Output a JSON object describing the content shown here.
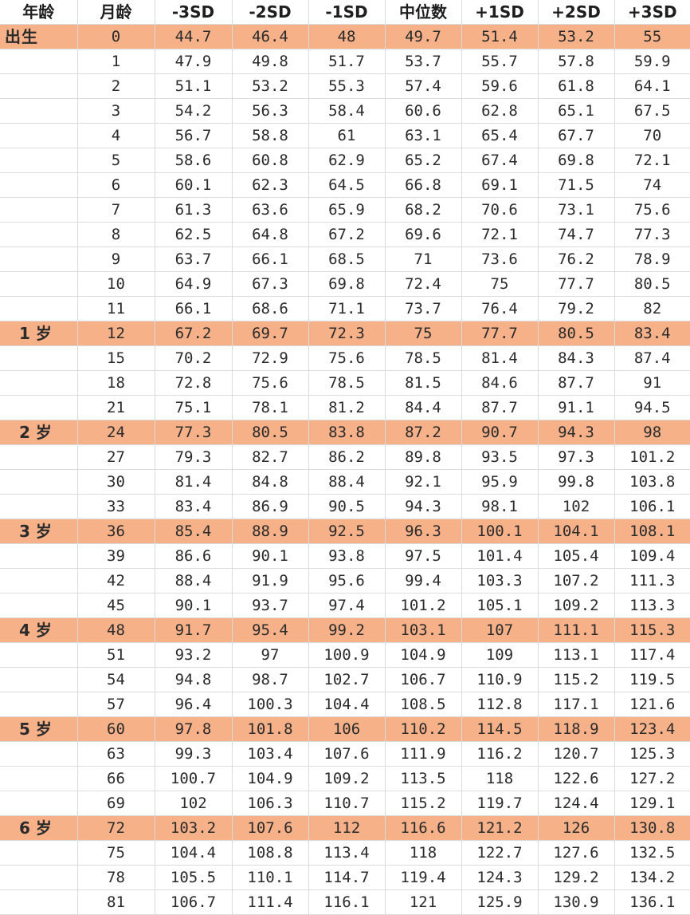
{
  "table": {
    "headers": [
      "年龄",
      "月龄",
      "-3SD",
      "-2SD",
      "-1SD",
      "中位数",
      "+1SD",
      "+2SD",
      "+3SD"
    ],
    "highlight_color": "#f6b189",
    "rows": [
      {
        "age": "出生",
        "month": "0",
        "values": [
          "44.7",
          "46.4",
          "48",
          "49.7",
          "51.4",
          "53.2",
          "55"
        ]
      },
      {
        "age": "",
        "month": "1",
        "values": [
          "47.9",
          "49.8",
          "51.7",
          "53.7",
          "55.7",
          "57.8",
          "59.9"
        ]
      },
      {
        "age": "",
        "month": "2",
        "values": [
          "51.1",
          "53.2",
          "55.3",
          "57.4",
          "59.6",
          "61.8",
          "64.1"
        ]
      },
      {
        "age": "",
        "month": "3",
        "values": [
          "54.2",
          "56.3",
          "58.4",
          "60.6",
          "62.8",
          "65.1",
          "67.5"
        ]
      },
      {
        "age": "",
        "month": "4",
        "values": [
          "56.7",
          "58.8",
          "61",
          "63.1",
          "65.4",
          "67.7",
          "70"
        ]
      },
      {
        "age": "",
        "month": "5",
        "values": [
          "58.6",
          "60.8",
          "62.9",
          "65.2",
          "67.4",
          "69.8",
          "72.1"
        ]
      },
      {
        "age": "",
        "month": "6",
        "values": [
          "60.1",
          "62.3",
          "64.5",
          "66.8",
          "69.1",
          "71.5",
          "74"
        ]
      },
      {
        "age": "",
        "month": "7",
        "values": [
          "61.3",
          "63.6",
          "65.9",
          "68.2",
          "70.6",
          "73.1",
          "75.6"
        ]
      },
      {
        "age": "",
        "month": "8",
        "values": [
          "62.5",
          "64.8",
          "67.2",
          "69.6",
          "72.1",
          "74.7",
          "77.3"
        ]
      },
      {
        "age": "",
        "month": "9",
        "values": [
          "63.7",
          "66.1",
          "68.5",
          "71",
          "73.6",
          "76.2",
          "78.9"
        ]
      },
      {
        "age": "",
        "month": "10",
        "values": [
          "64.9",
          "67.3",
          "69.8",
          "72.4",
          "75",
          "77.7",
          "80.5"
        ]
      },
      {
        "age": "",
        "month": "11",
        "values": [
          "66.1",
          "68.6",
          "71.1",
          "73.7",
          "76.4",
          "79.2",
          "82"
        ]
      },
      {
        "age": "1 岁",
        "month": "12",
        "values": [
          "67.2",
          "69.7",
          "72.3",
          "75",
          "77.7",
          "80.5",
          "83.4"
        ]
      },
      {
        "age": "",
        "month": "15",
        "values": [
          "70.2",
          "72.9",
          "75.6",
          "78.5",
          "81.4",
          "84.3",
          "87.4"
        ]
      },
      {
        "age": "",
        "month": "18",
        "values": [
          "72.8",
          "75.6",
          "78.5",
          "81.5",
          "84.6",
          "87.7",
          "91"
        ]
      },
      {
        "age": "",
        "month": "21",
        "values": [
          "75.1",
          "78.1",
          "81.2",
          "84.4",
          "87.7",
          "91.1",
          "94.5"
        ]
      },
      {
        "age": "2 岁",
        "month": "24",
        "values": [
          "77.3",
          "80.5",
          "83.8",
          "87.2",
          "90.7",
          "94.3",
          "98"
        ]
      },
      {
        "age": "",
        "month": "27",
        "values": [
          "79.3",
          "82.7",
          "86.2",
          "89.8",
          "93.5",
          "97.3",
          "101.2"
        ]
      },
      {
        "age": "",
        "month": "30",
        "values": [
          "81.4",
          "84.8",
          "88.4",
          "92.1",
          "95.9",
          "99.8",
          "103.8"
        ]
      },
      {
        "age": "",
        "month": "33",
        "values": [
          "83.4",
          "86.9",
          "90.5",
          "94.3",
          "98.1",
          "102",
          "106.1"
        ]
      },
      {
        "age": "3 岁",
        "month": "36",
        "values": [
          "85.4",
          "88.9",
          "92.5",
          "96.3",
          "100.1",
          "104.1",
          "108.1"
        ]
      },
      {
        "age": "",
        "month": "39",
        "values": [
          "86.6",
          "90.1",
          "93.8",
          "97.5",
          "101.4",
          "105.4",
          "109.4"
        ]
      },
      {
        "age": "",
        "month": "42",
        "values": [
          "88.4",
          "91.9",
          "95.6",
          "99.4",
          "103.3",
          "107.2",
          "111.3"
        ]
      },
      {
        "age": "",
        "month": "45",
        "values": [
          "90.1",
          "93.7",
          "97.4",
          "101.2",
          "105.1",
          "109.2",
          "113.3"
        ]
      },
      {
        "age": "4 岁",
        "month": "48",
        "values": [
          "91.7",
          "95.4",
          "99.2",
          "103.1",
          "107",
          "111.1",
          "115.3"
        ]
      },
      {
        "age": "",
        "month": "51",
        "values": [
          "93.2",
          "97",
          "100.9",
          "104.9",
          "109",
          "113.1",
          "117.4"
        ]
      },
      {
        "age": "",
        "month": "54",
        "values": [
          "94.8",
          "98.7",
          "102.7",
          "106.7",
          "110.9",
          "115.2",
          "119.5"
        ]
      },
      {
        "age": "",
        "month": "57",
        "values": [
          "96.4",
          "100.3",
          "104.4",
          "108.5",
          "112.8",
          "117.1",
          "121.6"
        ]
      },
      {
        "age": "5 岁",
        "month": "60",
        "values": [
          "97.8",
          "101.8",
          "106",
          "110.2",
          "114.5",
          "118.9",
          "123.4"
        ]
      },
      {
        "age": "",
        "month": "63",
        "values": [
          "99.3",
          "103.4",
          "107.6",
          "111.9",
          "116.2",
          "120.7",
          "125.3"
        ]
      },
      {
        "age": "",
        "month": "66",
        "values": [
          "100.7",
          "104.9",
          "109.2",
          "113.5",
          "118",
          "122.6",
          "127.2"
        ]
      },
      {
        "age": "",
        "month": "69",
        "values": [
          "102",
          "106.3",
          "110.7",
          "115.2",
          "119.7",
          "124.4",
          "129.1"
        ]
      },
      {
        "age": "6 岁",
        "month": "72",
        "values": [
          "103.2",
          "107.6",
          "112",
          "116.6",
          "121.2",
          "126",
          "130.8"
        ]
      },
      {
        "age": "",
        "month": "75",
        "values": [
          "104.4",
          "108.8",
          "113.4",
          "118",
          "122.7",
          "127.6",
          "132.5"
        ]
      },
      {
        "age": "",
        "month": "78",
        "values": [
          "105.5",
          "110.1",
          "114.7",
          "119.4",
          "124.3",
          "129.2",
          "134.2"
        ]
      },
      {
        "age": "",
        "month": "81",
        "values": [
          "106.7",
          "111.4",
          "116.1",
          "121",
          "125.9",
          "130.9",
          "136.1"
        ]
      }
    ]
  }
}
